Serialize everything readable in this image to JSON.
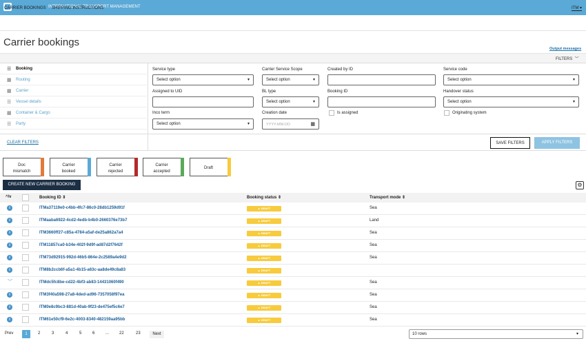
{
  "header": {
    "app_title": "INTERNATIONAL TRANSPORT MANAGEMENT",
    "user": "ITM"
  },
  "nav": [
    "CARRIER BOOKINGS",
    "SHIPPING INSTRUCTIONS"
  ],
  "page": {
    "title": "Carrier bookings",
    "output_messages": "Output messages",
    "filters_label": "FILTERS"
  },
  "side_nav": [
    {
      "label": "Booking",
      "icon": "list-icon"
    },
    {
      "label": "Routing",
      "icon": "grid-icon"
    },
    {
      "label": "Carrier",
      "icon": "grid-icon"
    },
    {
      "label": "Vessel details",
      "icon": "list-icon"
    },
    {
      "label": "Container & Cargo",
      "icon": "grid-icon"
    },
    {
      "label": "Party",
      "icon": "list-icon"
    }
  ],
  "clear_filters": "CLEAR FILTERS",
  "filters": {
    "service_type": {
      "label": "Service type",
      "value": "Select option"
    },
    "carrier_service_scope": {
      "label": "Carrier Service Scope",
      "value": "Select option"
    },
    "created_by_id": {
      "label": "Created by ID",
      "value": ""
    },
    "service_code": {
      "label": "Service code",
      "value": "Select option"
    },
    "assigned_to_uid": {
      "label": "Assigned to UID",
      "value": ""
    },
    "bl_type": {
      "label": "BL type",
      "value": "Select option"
    },
    "booking_id": {
      "label": "Booking ID",
      "value": ""
    },
    "handover_status": {
      "label": "Handover status",
      "value": "Select option"
    },
    "inco_term": {
      "label": "Inco term",
      "value": "Select option"
    },
    "creation_date": {
      "label": "Creation date",
      "placeholder": "YYYY-MM-DD"
    },
    "is_assigned": {
      "label": "Is assigned"
    },
    "originating_system": {
      "label": "Originating system"
    }
  },
  "buttons": {
    "save_filters": "SAVE FILTERS",
    "apply_filters": "APPLY FILTERS",
    "create": "CREATE NEW CARRIER BOOKING"
  },
  "status_cards": [
    {
      "line1": "Doc",
      "line2": "mismatch",
      "color": "#e07b39"
    },
    {
      "line1": "Carrier",
      "line2": "booked",
      "color": "#5aa9d6"
    },
    {
      "line1": "Carrier",
      "line2": "rejected",
      "color": "#b52a2a"
    },
    {
      "line1": "Carrier",
      "line2": "accepted",
      "color": "#5aa95a"
    },
    {
      "line1": "Draft",
      "line2": "",
      "color": "#f7cb3d"
    }
  ],
  "table": {
    "columns": [
      "Booking ID",
      "Booking status",
      "Transport mode"
    ],
    "rows": [
      {
        "id": "ITMa37119e0-c4bb-4fc7-86c0-28db1259d91f",
        "status": "DRAFT",
        "mode": "Sea",
        "icon": "info"
      },
      {
        "id": "ITMaaba6922-4cd2-4edb-b4b0-2660376e73b7",
        "status": "DRAFT",
        "mode": "Land",
        "icon": "info"
      },
      {
        "id": "ITM3660ff27-c85a-4784-a5af-de25a862a7a4",
        "status": "DRAFT",
        "mode": "Sea",
        "icon": "info"
      },
      {
        "id": "ITM11857ca0-b34e-402f-9d9f-ad87d2f7642f",
        "status": "DRAFT",
        "mode": "Sea",
        "icon": "info"
      },
      {
        "id": "ITM73d92915-992d-46b5-864e-2c2589a4e9d2",
        "status": "DRAFT",
        "mode": "Sea",
        "icon": "info"
      },
      {
        "id": "ITM8b2ccb6f-a5a1-4b15-a63c-aa8de49c8a83",
        "status": "DRAFT",
        "mode": "",
        "icon": "info"
      },
      {
        "id": "ITMdc5fc8be-cd22-4bf3-ab83-14431060f490",
        "status": "DRAFT",
        "mode": "Sea",
        "icon": "chevron"
      },
      {
        "id": "ITM3f40a598-27a8-4ded-ad96-7357058f97ea",
        "status": "DRAFT",
        "mode": "Sea",
        "icon": "info"
      },
      {
        "id": "ITM0e8c9bc3-881d-40ab-9f23-de475ef5c6e7",
        "status": "DRAFT",
        "mode": "Sea",
        "icon": "info"
      },
      {
        "id": "ITM61e50cf9-6e2c-4003-8340-482159aa95bb",
        "status": "DRAFT",
        "mode": "Sea",
        "icon": "info"
      }
    ]
  },
  "pagination": {
    "prev": "Prev",
    "pages": [
      "1",
      "2",
      "3",
      "4",
      "5",
      "6",
      "...",
      "22",
      "23"
    ],
    "next": "Next",
    "rows": "10 rows"
  }
}
